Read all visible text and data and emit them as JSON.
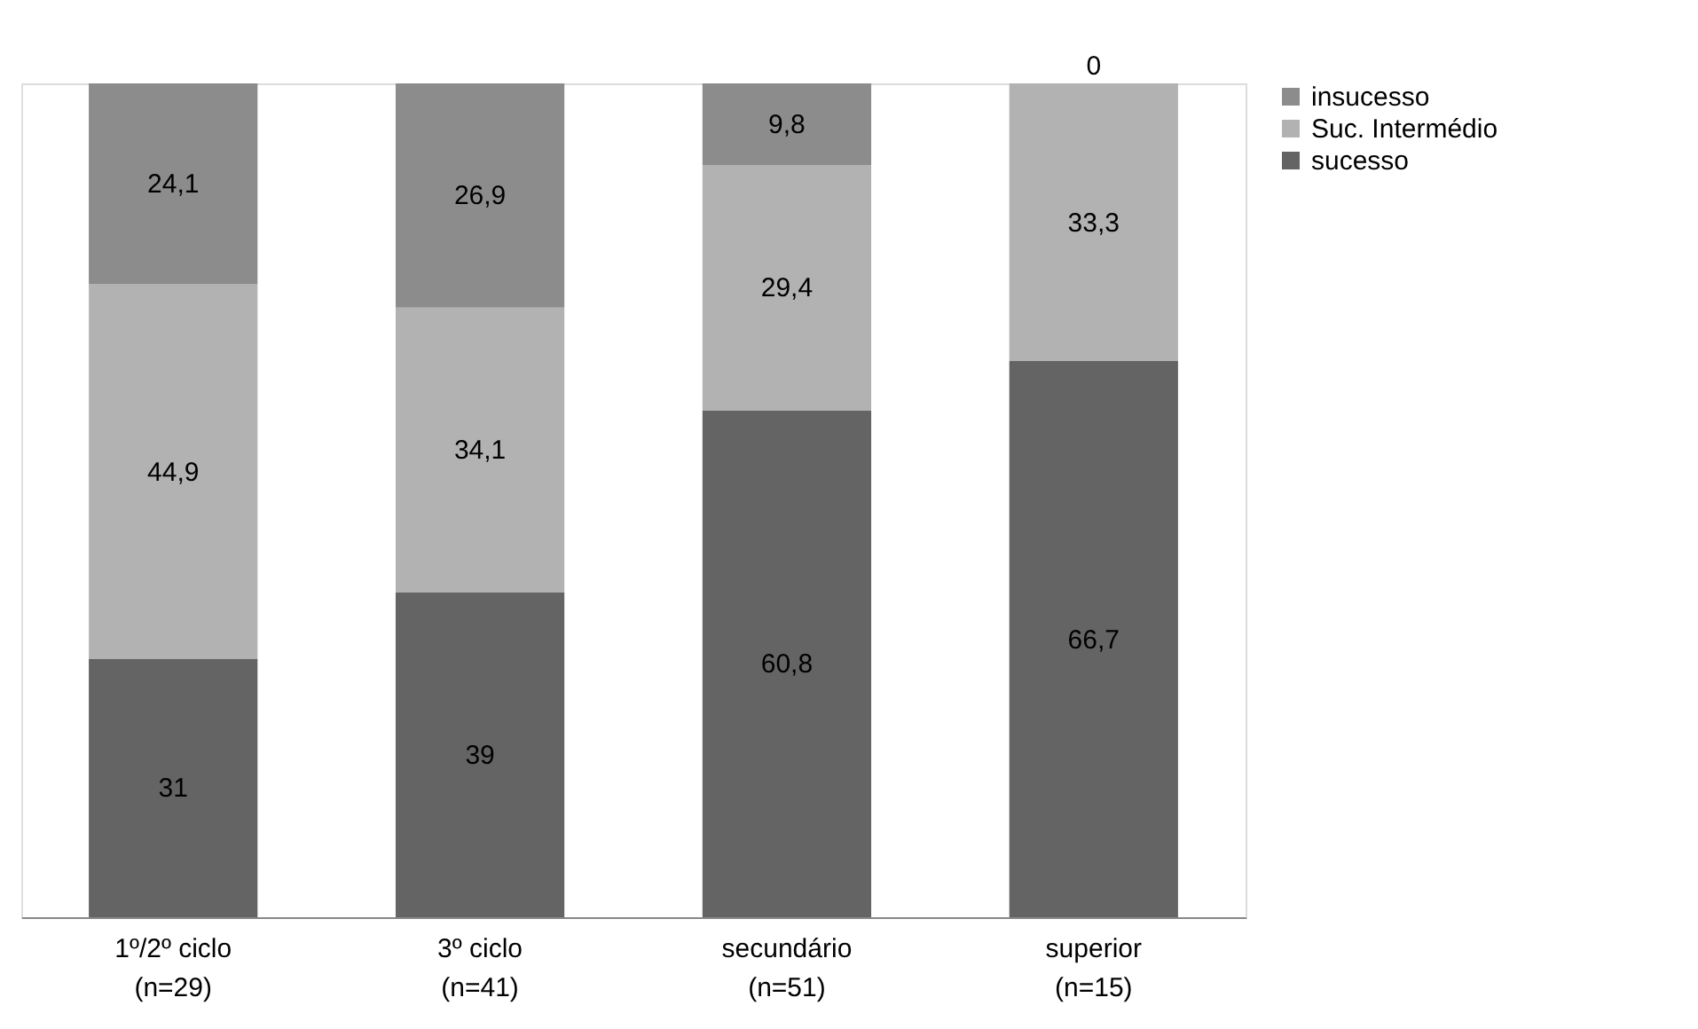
{
  "chart_data": {
    "type": "bar",
    "stacked": true,
    "legend": "right",
    "categories": [
      "1º/2º ciclo\n(n=29)",
      "3º ciclo\n(n=41)",
      "secundário\n(n=51)",
      "superior\n(n=15)"
    ],
    "series": [
      {
        "name": "sucesso",
        "color": "#646464",
        "values": [
          31,
          39,
          60.8,
          66.7
        ],
        "value_labels": [
          "31",
          "39",
          "60,8",
          "66,7"
        ]
      },
      {
        "name": "Suc. Intermédio",
        "color": "#b2b2b2",
        "values": [
          44.9,
          34.1,
          29.4,
          33.3
        ],
        "value_labels": [
          "44,9",
          "34,1",
          "29,4",
          "33,3"
        ]
      },
      {
        "name": "insucesso",
        "color": "#8c8c8c",
        "values": [
          24.1,
          26.9,
          9.8,
          0
        ],
        "value_labels": [
          "24,1",
          "26,9",
          "9,8",
          "0"
        ]
      }
    ]
  }
}
